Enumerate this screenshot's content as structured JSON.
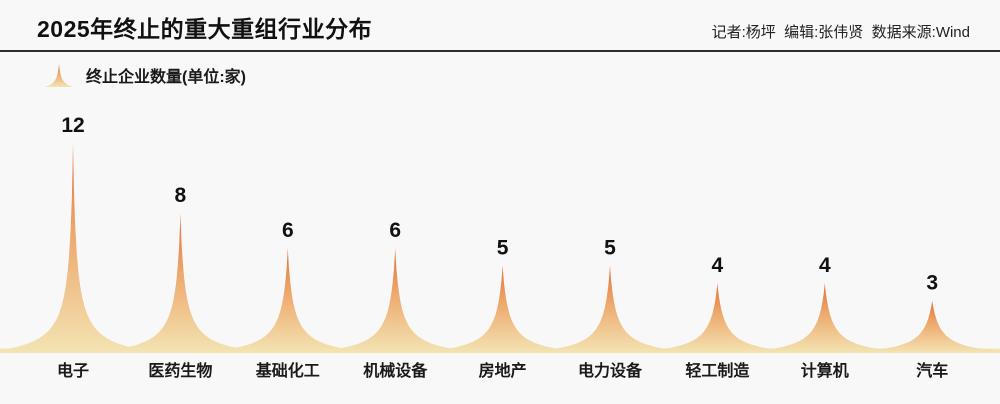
{
  "header": {
    "title": "2025年终止的重大重组行业分布",
    "credits": "记者:杨坪  编辑:张伟贤  数据来源:Wind"
  },
  "legend": {
    "label": "终止企业数量(单位:家)",
    "icon": "peak-icon"
  },
  "colors": {
    "background": "#F8F8F8",
    "divider": "#2E2E2E",
    "title_text": "#111111",
    "credits_text": "#222222",
    "label_text": "#1A1A1A",
    "peak_top": "#E07038",
    "peak_mid": "#EDA76B",
    "peak_base": "#F3E4B3"
  },
  "chart_data": {
    "type": "area",
    "title": "2025年终止的重大重组行业分布",
    "series_label": "终止企业数量(单位:家)",
    "categories": [
      "电子",
      "医药生物",
      "基础化工",
      "机械设备",
      "房地产",
      "电力设备",
      "轻工制造",
      "计算机",
      "汽车"
    ],
    "values": [
      12,
      8,
      6,
      6,
      5,
      5,
      4,
      4,
      3
    ],
    "unit": "家",
    "ylim": [
      0,
      12
    ],
    "value_labels_shown": true,
    "grid": false,
    "legend_position": "top-left",
    "style": "sharp-peak-area-gradient"
  }
}
